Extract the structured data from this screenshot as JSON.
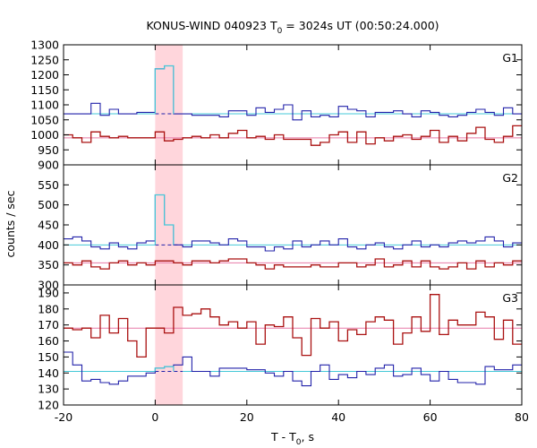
{
  "chart_data": {
    "type": "line",
    "title_main": "KONUS-WIND 040923 T",
    "title_sub": "0",
    "title_rest": " = 3024s UT (00:50:24.000)",
    "xlabel_main": "T - T",
    "xlabel_sub": "0",
    "xlabel_rest": ", s",
    "ylabel": "counts / sec",
    "xlim": [
      -20,
      80
    ],
    "x_ticks": [
      -20,
      0,
      20,
      40,
      60,
      80
    ],
    "highlight_interval": [
      0,
      6
    ],
    "bin_edges": [
      -20,
      -18,
      -16,
      -14,
      -12,
      -10,
      -8,
      -6,
      -4,
      -2,
      0,
      2,
      4,
      6,
      8,
      10,
      12,
      14,
      16,
      18,
      20,
      22,
      24,
      26,
      28,
      30,
      32,
      34,
      36,
      38,
      40,
      42,
      44,
      46,
      48,
      50,
      52,
      54,
      56,
      58,
      60,
      62,
      64,
      66,
      68,
      70,
      72,
      74,
      76,
      78,
      80
    ],
    "colors": {
      "pulse": "#2222aa",
      "pulse_fit": "#44c8d8",
      "background": "#aa1111",
      "background_fit": "#e87aa8",
      "highlight": "#ffd6dc"
    },
    "panels": [
      {
        "name": "G1",
        "ylim": [
          900,
          1300
        ],
        "y_ticks": [
          900,
          950,
          1000,
          1050,
          1100,
          1150,
          1200,
          1250,
          1300
        ],
        "pulse_level": 1070,
        "background_level": 990,
        "pulse_values": [
          1070,
          1070,
          1070,
          1105,
          1065,
          1085,
          1070,
          1070,
          1075,
          1075,
          1220,
          1230,
          1070,
          1070,
          1065,
          1065,
          1065,
          1060,
          1080,
          1080,
          1065,
          1090,
          1075,
          1085,
          1100,
          1050,
          1080,
          1060,
          1065,
          1060,
          1095,
          1085,
          1080,
          1060,
          1075,
          1075,
          1080,
          1070,
          1060,
          1080,
          1075,
          1065,
          1060,
          1065,
          1075,
          1085,
          1075,
          1065,
          1090,
          1070
        ],
        "background_values": [
          1000,
          990,
          975,
          1010,
          995,
          990,
          995,
          990,
          990,
          990,
          1010,
          980,
          985,
          990,
          995,
          990,
          1000,
          990,
          1005,
          1015,
          990,
          995,
          985,
          1000,
          985,
          985,
          985,
          965,
          975,
          1000,
          1010,
          975,
          1010,
          970,
          990,
          980,
          995,
          1000,
          985,
          995,
          1015,
          975,
          995,
          980,
          1005,
          1025,
          985,
          975,
          995,
          1030
        ],
        "fit_notch": [
          10,
          12
        ]
      },
      {
        "name": "G2",
        "ylim": [
          300,
          600
        ],
        "y_ticks": [
          300,
          350,
          400,
          450,
          500,
          550
        ],
        "pulse_level": 400,
        "background_level": 355,
        "pulse_values": [
          415,
          420,
          410,
          395,
          390,
          405,
          395,
          390,
          405,
          410,
          525,
          450,
          400,
          395,
          410,
          410,
          405,
          400,
          415,
          410,
          395,
          395,
          385,
          395,
          390,
          410,
          395,
          400,
          410,
          400,
          415,
          395,
          390,
          400,
          405,
          395,
          390,
          400,
          410,
          395,
          400,
          395,
          405,
          410,
          405,
          410,
          420,
          410,
          395,
          405
        ],
        "background_values": [
          355,
          350,
          360,
          345,
          340,
          355,
          360,
          350,
          355,
          350,
          360,
          360,
          355,
          350,
          360,
          360,
          355,
          360,
          365,
          365,
          355,
          350,
          340,
          350,
          345,
          345,
          345,
          350,
          345,
          345,
          355,
          355,
          345,
          350,
          365,
          345,
          350,
          360,
          345,
          360,
          345,
          340,
          345,
          355,
          340,
          360,
          345,
          355,
          350,
          360
        ],
        "fit_notch": [
          10,
          12
        ]
      },
      {
        "name": "G3",
        "ylim": [
          120,
          195
        ],
        "y_ticks": [
          120,
          130,
          140,
          150,
          160,
          170,
          180,
          190
        ],
        "pulse_level": 141,
        "background_level": 168,
        "pulse_values": [
          153,
          145,
          135,
          136,
          134,
          133,
          135,
          138,
          138,
          140,
          143,
          144,
          145,
          150,
          141,
          141,
          138,
          143,
          143,
          143,
          142,
          142,
          140,
          138,
          141,
          135,
          132,
          141,
          145,
          136,
          139,
          137,
          141,
          139,
          143,
          145,
          138,
          139,
          143,
          139,
          135,
          141,
          136,
          134,
          134,
          133,
          144,
          142,
          142,
          145
        ],
        "background_values": [
          168,
          167,
          168,
          162,
          176,
          165,
          174,
          160,
          150,
          168,
          168,
          165,
          181,
          176,
          177,
          180,
          175,
          170,
          172,
          168,
          172,
          158,
          170,
          169,
          175,
          162,
          151,
          174,
          168,
          172,
          160,
          167,
          164,
          172,
          175,
          173,
          158,
          165,
          175,
          166,
          189,
          164,
          173,
          170,
          170,
          178,
          175,
          161,
          173,
          158
        ],
        "fit_notch": [
          10,
          12
        ]
      }
    ]
  }
}
